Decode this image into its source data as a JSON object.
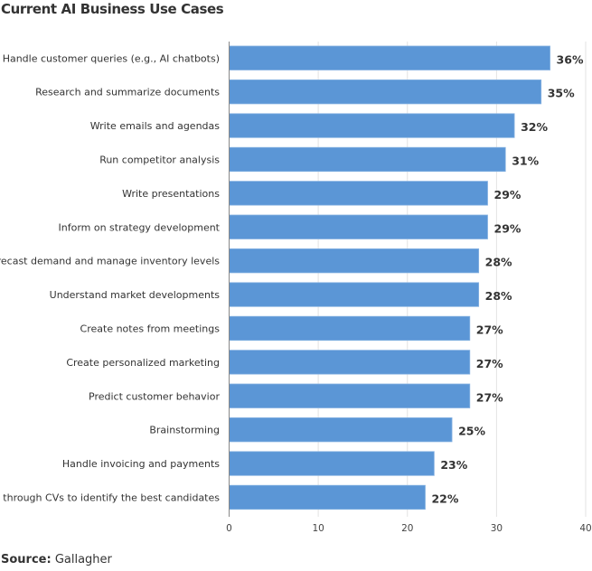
{
  "title": "Current AI Business Use Cases",
  "source": {
    "label": "Source:",
    "value": "Gallagher"
  },
  "chart_data": {
    "type": "bar",
    "orientation": "horizontal",
    "title": "Current AI Business Use Cases",
    "categories": [
      "Handle customer queries (e.g., AI chatbots)",
      "Research and summarize documents",
      "Write emails and agendas",
      "Run competitor analysis",
      "Write presentations",
      "Inform on strategy development",
      "Forecast demand and manage inventory levels",
      "Understand market developments",
      "Create notes from meetings",
      "Create personalized marketing",
      "Predict customer behavior",
      "Brainstorming",
      "Handle invoicing and payments",
      "Sort through CVs to identify the best candidates"
    ],
    "values": [
      36,
      35,
      32,
      31,
      29,
      29,
      28,
      28,
      27,
      27,
      27,
      25,
      23,
      22
    ],
    "data_labels": [
      "36%",
      "35%",
      "32%",
      "31%",
      "29%",
      "29%",
      "28%",
      "28%",
      "27%",
      "27%",
      "27%",
      "25%",
      "23%",
      "22%"
    ],
    "xlim": [
      0,
      40
    ],
    "xticks": [
      "0",
      "10",
      "20",
      "30",
      "40"
    ],
    "xlabel": "",
    "ylabel": "",
    "grid": true,
    "bar_color": "#5b96d6"
  }
}
